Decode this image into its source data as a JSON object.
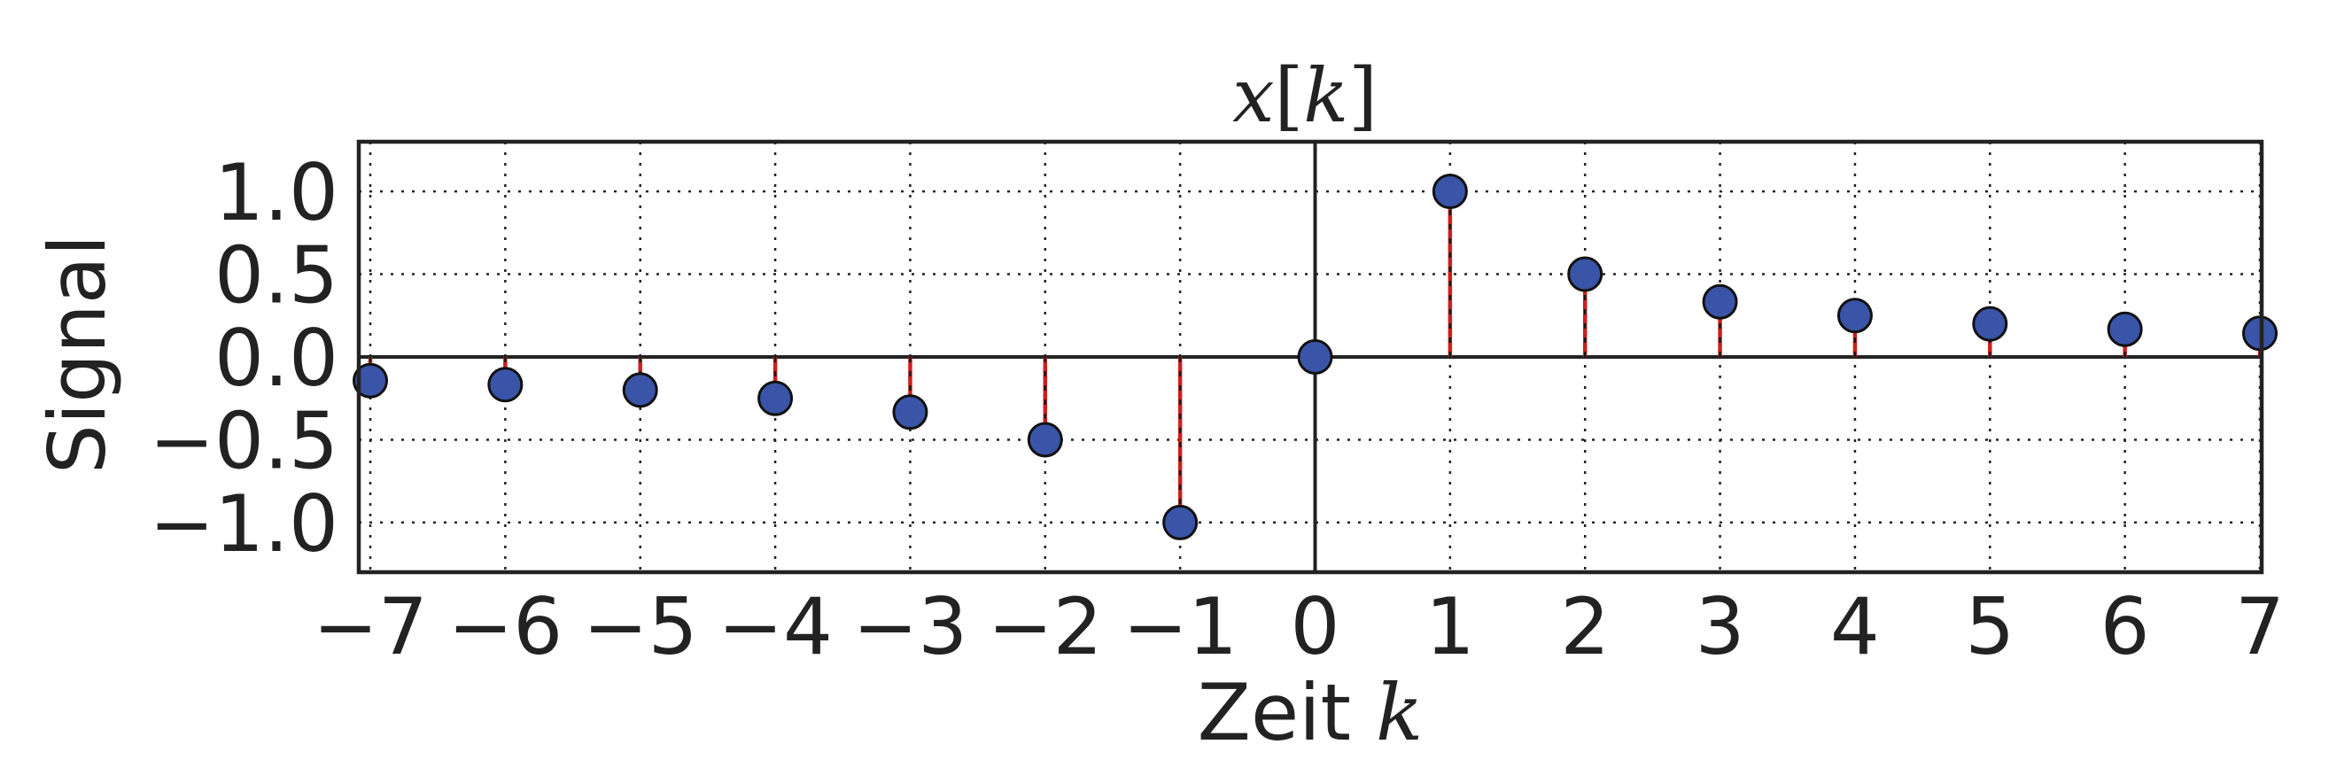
{
  "chart_data": {
    "type": "stem",
    "title": "x[k]",
    "title_parts": {
      "var": "x",
      "open": "[",
      "idx": "k",
      "close": "]"
    },
    "xlabel": "Zeit k",
    "xlabel_parts": {
      "text": "Zeit ",
      "math": "k"
    },
    "ylabel": "Signal",
    "xlim": [
      -7,
      7
    ],
    "ylim": [
      -1.3,
      1.3
    ],
    "xticks": [
      -7,
      -6,
      -5,
      -4,
      -3,
      -2,
      -1,
      0,
      1,
      2,
      3,
      4,
      5,
      6,
      7
    ],
    "xtick_labels": [
      "−7",
      "−6",
      "−5",
      "−4",
      "−3",
      "−2",
      "−1",
      "0",
      "1",
      "2",
      "3",
      "4",
      "5",
      "6",
      "7"
    ],
    "yticks": [
      -1.0,
      -0.5,
      0.0,
      0.5,
      1.0
    ],
    "ytick_labels": [
      "−1.0",
      "−0.5",
      "0.0",
      "0.5",
      "1.0"
    ],
    "grid": true,
    "marker_color": "#3a54a8",
    "stem_color": "#cc1f1f",
    "series": [
      {
        "x": [
          -7,
          -6,
          -5,
          -4,
          -3,
          -2,
          -1,
          0,
          1,
          2,
          3,
          4,
          5,
          6,
          7
        ],
        "values": [
          -0.143,
          -0.167,
          -0.2,
          -0.25,
          -0.333,
          -0.5,
          -1.0,
          0.0,
          1.0,
          0.5,
          0.333,
          0.25,
          0.2,
          0.167,
          0.143
        ]
      }
    ]
  }
}
